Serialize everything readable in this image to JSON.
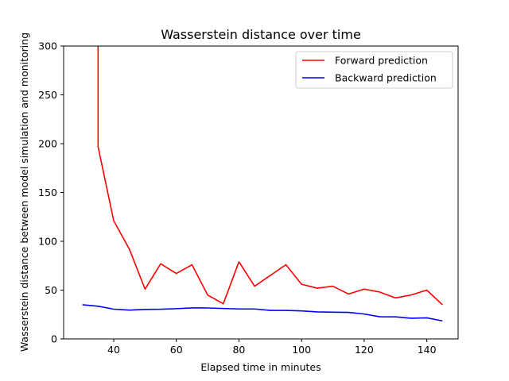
{
  "chart_data": {
    "type": "line",
    "title": "Wasserstein distance over time",
    "xlabel": "Elapsed time in minutes",
    "ylabel": "Wasserstein distance between model simulation and monitoring",
    "xlim": [
      24,
      150
    ],
    "ylim": [
      0,
      300
    ],
    "xticks": [
      40,
      60,
      80,
      100,
      120,
      140
    ],
    "yticks": [
      0,
      50,
      100,
      150,
      200,
      250,
      300
    ],
    "grid": false,
    "legend_position": "upper right",
    "series": [
      {
        "name": "Forward prediction",
        "color": "#ff0000",
        "points": [
          [
            35,
            300
          ],
          [
            35,
            197
          ],
          [
            40,
            121
          ],
          [
            45,
            92
          ],
          [
            50,
            51
          ],
          [
            55,
            77
          ],
          [
            60,
            67
          ],
          [
            65,
            76
          ],
          [
            70,
            45
          ],
          [
            75,
            36
          ],
          [
            80,
            79
          ],
          [
            85,
            54
          ],
          [
            90,
            65
          ],
          [
            95,
            76
          ],
          [
            100,
            56
          ],
          [
            105,
            52
          ],
          [
            110,
            54
          ],
          [
            115,
            46
          ],
          [
            120,
            51
          ],
          [
            125,
            48
          ],
          [
            130,
            42
          ],
          [
            135,
            45
          ],
          [
            140,
            50
          ],
          [
            145,
            35
          ]
        ]
      },
      {
        "name": "Backward prediction",
        "color": "#0000ff",
        "points": [
          [
            30,
            35
          ],
          [
            35,
            33.5
          ],
          [
            40,
            30.5
          ],
          [
            45,
            29.5
          ],
          [
            50,
            30.2
          ],
          [
            55,
            30.4
          ],
          [
            60,
            31
          ],
          [
            65,
            31.8
          ],
          [
            70,
            31.7
          ],
          [
            75,
            31.2
          ],
          [
            80,
            30.7
          ],
          [
            85,
            30.7
          ],
          [
            90,
            29.2
          ],
          [
            95,
            29.2
          ],
          [
            100,
            28.7
          ],
          [
            105,
            27.7
          ],
          [
            110,
            27.4
          ],
          [
            115,
            27.2
          ],
          [
            120,
            25.5
          ],
          [
            125,
            22.7
          ],
          [
            130,
            22.6
          ],
          [
            135,
            21.2
          ],
          [
            140,
            21.6
          ],
          [
            145,
            18.5
          ]
        ]
      }
    ]
  }
}
